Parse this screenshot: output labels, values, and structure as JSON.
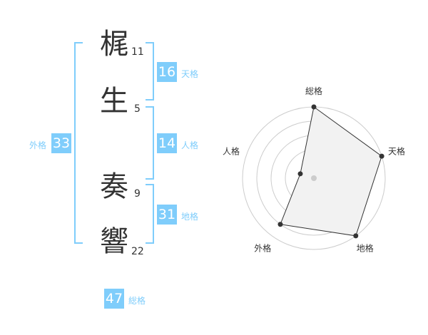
{
  "name": {
    "chars": [
      {
        "char": "梶",
        "strokes": "11"
      },
      {
        "char": "生",
        "strokes": "5"
      },
      {
        "char": "奏",
        "strokes": "9"
      },
      {
        "char": "響",
        "strokes": "22"
      }
    ]
  },
  "kaku": {
    "tenkaku": {
      "value": "16",
      "label": "天格"
    },
    "jinkaku": {
      "value": "14",
      "label": "人格"
    },
    "chikaku": {
      "value": "31",
      "label": "地格"
    },
    "gaikaku": {
      "value": "33",
      "label": "外格"
    },
    "soukaku": {
      "value": "47",
      "label": "総格"
    }
  },
  "colors": {
    "accent": "#7fcdfb",
    "text": "#333333",
    "fill": "#f2f2f2"
  },
  "chart_data": {
    "type": "radar",
    "axes": [
      "総格",
      "天格",
      "地格",
      "外格",
      "人格"
    ],
    "values": [
      5,
      5,
      5,
      4,
      1
    ],
    "range": [
      0,
      5
    ],
    "rings": 5
  }
}
